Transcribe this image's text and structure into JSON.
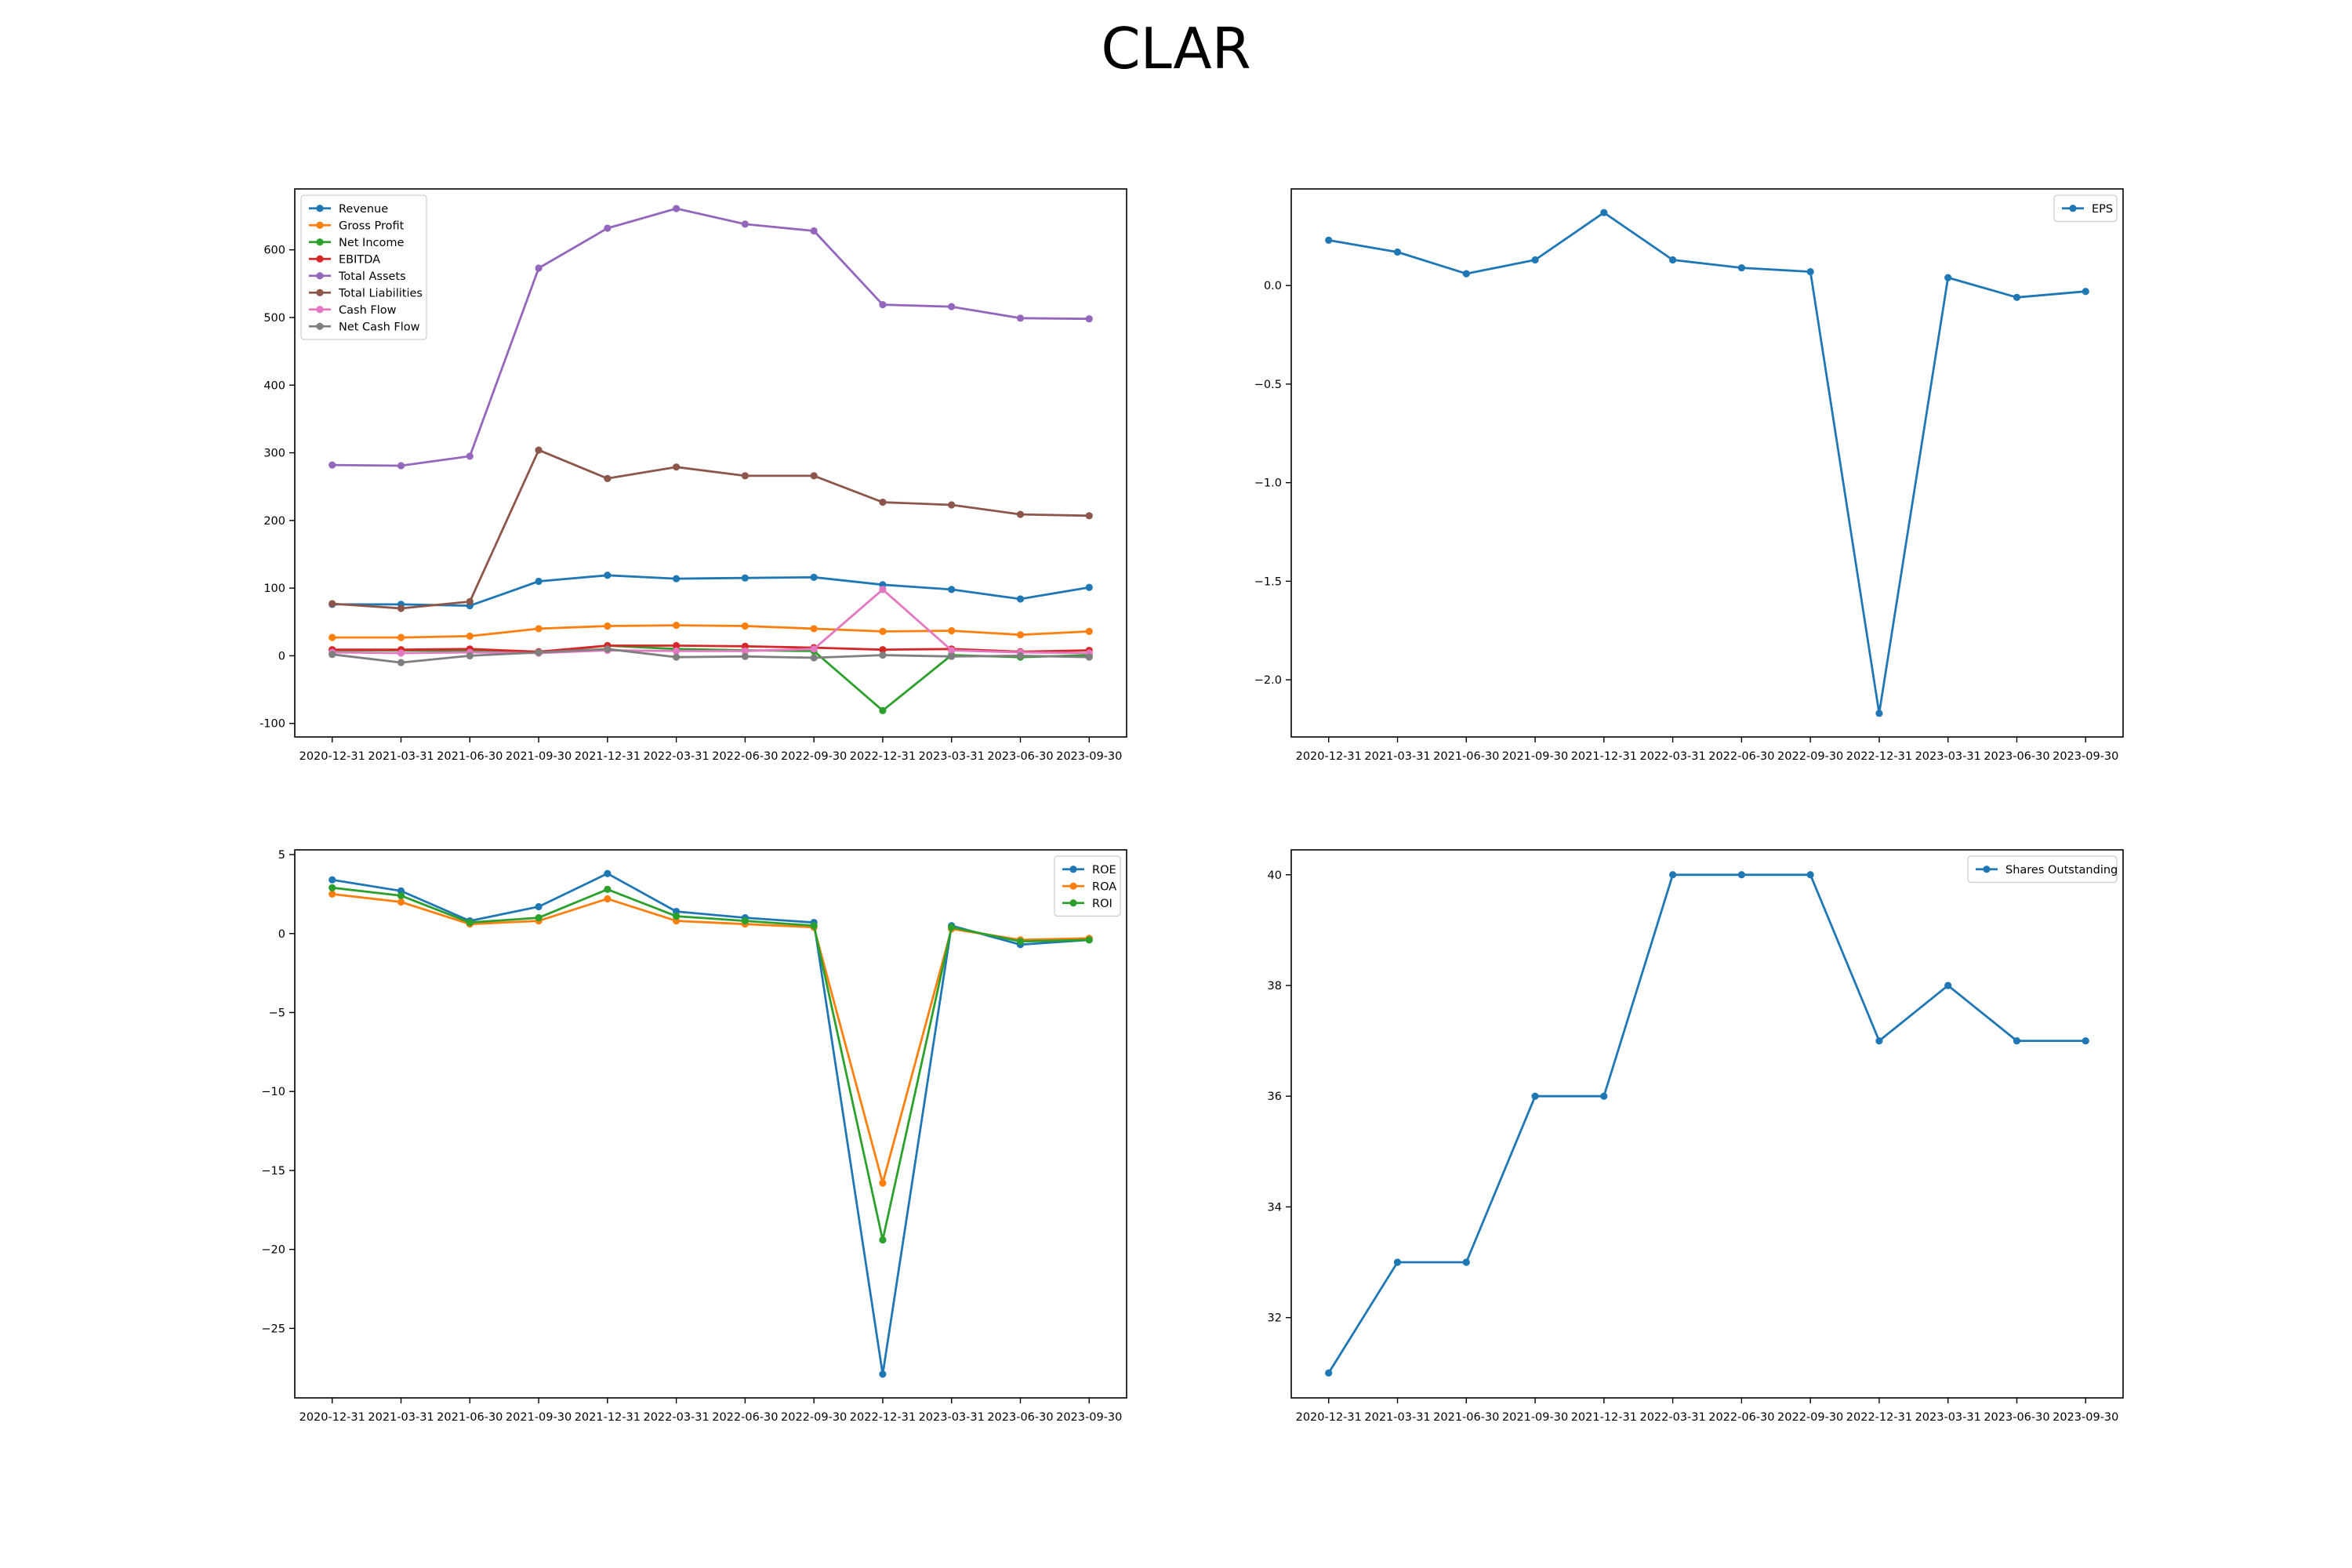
{
  "title": "CLAR",
  "colors": {
    "blue": "#1f77b4",
    "orange": "#ff7f0e",
    "green": "#2ca02c",
    "red": "#d62728",
    "purple": "#9467bd",
    "brown": "#8c564b",
    "pink": "#e377c2",
    "gray": "#7f7f7f"
  },
  "chart_data": [
    {
      "id": "financials",
      "type": "line",
      "title": "",
      "xlabel": "",
      "ylabel": "",
      "legend_position": "upper-left",
      "grid": false,
      "x": [
        "2020-12-31",
        "2021-03-31",
        "2021-06-30",
        "2021-09-30",
        "2021-12-31",
        "2022-03-31",
        "2022-06-30",
        "2022-09-30",
        "2022-12-31",
        "2023-03-31",
        "2023-06-30",
        "2023-09-30"
      ],
      "ylim": [
        -120,
        690
      ],
      "yticks": [
        -100,
        0,
        100,
        200,
        300,
        400,
        500,
        600
      ],
      "series": [
        {
          "name": "Revenue",
          "color": "#1f77b4",
          "values": [
            76,
            76,
            74,
            110,
            119,
            114,
            115,
            116,
            105,
            98,
            84,
            101
          ]
        },
        {
          "name": "Gross Profit",
          "color": "#ff7f0e",
          "values": [
            27,
            27,
            29,
            40,
            44,
            45,
            44,
            40,
            36,
            37,
            31,
            36
          ]
        },
        {
          "name": "Net Income",
          "color": "#2ca02c",
          "values": [
            8,
            8,
            7,
            5,
            15,
            10,
            8,
            7,
            -81,
            1,
            -2,
            1
          ]
        },
        {
          "name": "EBITDA",
          "color": "#d62728",
          "values": [
            9,
            9,
            10,
            6,
            15,
            15,
            14,
            12,
            9,
            10,
            6,
            8
          ]
        },
        {
          "name": "Total Assets",
          "color": "#9467bd",
          "values": [
            282,
            281,
            295,
            573,
            632,
            661,
            638,
            628,
            519,
            516,
            499,
            498
          ]
        },
        {
          "name": "Total Liabilities",
          "color": "#8c564b",
          "values": [
            77,
            70,
            80,
            304,
            262,
            279,
            266,
            266,
            227,
            223,
            209,
            207
          ]
        },
        {
          "name": "Cash Flow",
          "color": "#e377c2",
          "values": [
            5,
            4,
            5,
            4,
            8,
            7,
            7,
            10,
            98,
            8,
            5,
            4
          ]
        },
        {
          "name": "Net Cash Flow",
          "color": "#7f7f7f",
          "values": [
            2,
            -10,
            0,
            5,
            10,
            -2,
            -1,
            -3,
            1,
            -1,
            0,
            -2
          ]
        }
      ]
    },
    {
      "id": "eps",
      "type": "line",
      "title": "",
      "xlabel": "",
      "ylabel": "",
      "legend_position": "upper-right",
      "grid": false,
      "x": [
        "2020-12-31",
        "2021-03-31",
        "2021-06-30",
        "2021-09-30",
        "2021-12-31",
        "2022-03-31",
        "2022-06-30",
        "2022-09-30",
        "2022-12-31",
        "2023-03-31",
        "2023-06-30",
        "2023-09-30"
      ],
      "ylim": [
        -2.29,
        0.49
      ],
      "yticks": [
        -2.0,
        -1.5,
        -1.0,
        -0.5,
        0.0
      ],
      "yticklabels": [
        "−2.0",
        "−1.5",
        "−1.0",
        "−0.5",
        "0.0"
      ],
      "series": [
        {
          "name": "EPS",
          "color": "#1f77b4",
          "values": [
            0.23,
            0.17,
            0.06,
            0.13,
            0.37,
            0.13,
            0.09,
            0.07,
            -2.17,
            0.04,
            -0.06,
            -0.03
          ]
        }
      ]
    },
    {
      "id": "returns",
      "type": "line",
      "title": "",
      "xlabel": "",
      "ylabel": "",
      "legend_position": "upper-right",
      "grid": false,
      "x": [
        "2020-12-31",
        "2021-03-31",
        "2021-06-30",
        "2021-09-30",
        "2021-12-31",
        "2022-03-31",
        "2022-06-30",
        "2022-09-30",
        "2022-12-31",
        "2023-03-31",
        "2023-06-30",
        "2023-09-30"
      ],
      "ylim": [
        -29.4,
        5.3
      ],
      "yticks": [
        -25,
        -20,
        -15,
        -10,
        -5,
        0,
        5
      ],
      "yticklabels": [
        "−25",
        "−20",
        "−15",
        "−10",
        "−5",
        "0",
        "5"
      ],
      "series": [
        {
          "name": "ROE",
          "color": "#1f77b4",
          "values": [
            3.4,
            2.7,
            0.8,
            1.7,
            3.8,
            1.4,
            1.0,
            0.7,
            -27.9,
            0.5,
            -0.7,
            -0.4
          ]
        },
        {
          "name": "ROA",
          "color": "#ff7f0e",
          "values": [
            2.5,
            2.0,
            0.6,
            0.8,
            2.2,
            0.8,
            0.6,
            0.4,
            -15.8,
            0.3,
            -0.4,
            -0.3
          ]
        },
        {
          "name": "ROI",
          "color": "#2ca02c",
          "values": [
            2.9,
            2.4,
            0.7,
            1.0,
            2.8,
            1.1,
            0.8,
            0.5,
            -19.4,
            0.4,
            -0.5,
            -0.4
          ]
        }
      ]
    },
    {
      "id": "shares",
      "type": "line",
      "title": "",
      "xlabel": "",
      "ylabel": "",
      "legend_position": "upper-right",
      "grid": false,
      "x": [
        "2020-12-31",
        "2021-03-31",
        "2021-06-30",
        "2021-09-30",
        "2021-12-31",
        "2022-03-31",
        "2022-06-30",
        "2022-09-30",
        "2022-12-31",
        "2023-03-31",
        "2023-06-30",
        "2023-09-30"
      ],
      "ylim": [
        30.55,
        40.45
      ],
      "yticks": [
        32,
        34,
        36,
        38,
        40
      ],
      "series": [
        {
          "name": "Shares Outstanding",
          "color": "#1f77b4",
          "values": [
            31,
            33,
            33,
            36,
            36,
            40,
            40,
            40,
            37,
            38,
            37,
            37
          ]
        }
      ]
    }
  ]
}
